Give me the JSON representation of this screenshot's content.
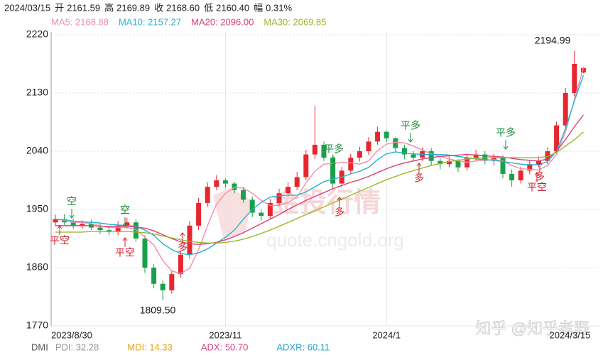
{
  "header": {
    "date": "2024/03/15",
    "items": [
      {
        "name": "开",
        "value": "2161.59"
      },
      {
        "name": "高",
        "value": "2169.89"
      },
      {
        "name": "收",
        "value": "2168.60"
      },
      {
        "name": "低",
        "value": "2160.40"
      },
      {
        "name": "幅",
        "value": "0.31%"
      }
    ]
  },
  "chart_data": {
    "type": "candlestick",
    "categories": [
      "2023/8/30",
      null,
      null,
      null,
      null,
      null,
      null,
      null,
      null,
      null,
      null,
      null,
      null,
      null,
      null,
      null,
      null,
      null,
      null,
      "2023/11",
      null,
      null,
      null,
      null,
      null,
      null,
      null,
      null,
      null,
      null,
      null,
      null,
      null,
      null,
      null,
      null,
      null,
      "2024/1",
      null,
      null,
      null,
      null,
      null,
      null,
      null,
      null,
      null,
      null,
      null,
      null,
      null,
      null,
      null,
      null,
      null,
      null,
      null,
      null,
      null,
      "2024/3/15"
    ],
    "open": [
      1930,
      1935,
      1930,
      1925,
      1928,
      1922,
      1918,
      1915,
      1925,
      1930,
      1905,
      1860,
      1835,
      1825,
      1850,
      1880,
      1925,
      1960,
      1985,
      1995,
      1990,
      1980,
      1965,
      1945,
      1940,
      1960,
      1975,
      1985,
      2000,
      2035,
      2050,
      2030,
      1990,
      2010,
      2030,
      2040,
      2055,
      2070,
      2060,
      2045,
      2035,
      2030,
      2040,
      2025,
      2020,
      2025,
      2015,
      2030,
      2035,
      2025,
      2030,
      2005,
      1995,
      2010,
      2020,
      2025,
      2040,
      2080,
      2130,
      2161.59
    ],
    "high": [
      1942,
      1943,
      1936,
      1933,
      1934,
      1928,
      1924,
      1932,
      1937,
      1935,
      1910,
      1866,
      1840,
      1856,
      1886,
      1932,
      1968,
      1992,
      2003,
      1998,
      1993,
      1985,
      1970,
      1950,
      1966,
      1982,
      1992,
      2008,
      2042,
      2110,
      2055,
      2035,
      2016,
      2036,
      2047,
      2062,
      2078,
      2072,
      2062,
      2050,
      2040,
      2046,
      2045,
      2030,
      2032,
      2028,
      2036,
      2042,
      2040,
      2036,
      2034,
      2012,
      2016,
      2026,
      2032,
      2046,
      2086,
      2138,
      2194.99,
      2169.89
    ],
    "low": [
      1924,
      1926,
      1920,
      1920,
      1918,
      1912,
      1910,
      1910,
      1920,
      1900,
      1852,
      1828,
      1809.5,
      1820,
      1845,
      1874,
      1918,
      1954,
      1980,
      1984,
      1975,
      1960,
      1938,
      1932,
      1935,
      1955,
      1970,
      1980,
      1995,
      2028,
      2025,
      1982,
      1985,
      2004,
      2024,
      2034,
      2050,
      2054,
      2040,
      2028,
      2024,
      2025,
      2018,
      2012,
      2015,
      2008,
      2010,
      2025,
      2020,
      2018,
      1998,
      1985,
      1990,
      2004,
      2015,
      2020,
      2035,
      2075,
      2125,
      2160.4
    ],
    "close": [
      1935,
      1930,
      1925,
      1928,
      1922,
      1918,
      1915,
      1925,
      1930,
      1905,
      1860,
      1835,
      1825,
      1850,
      1880,
      1925,
      1960,
      1985,
      1995,
      1990,
      1980,
      1965,
      1945,
      1940,
      1960,
      1975,
      1985,
      2000,
      2035,
      2050,
      2030,
      1990,
      2010,
      2030,
      2040,
      2055,
      2070,
      2060,
      2045,
      2035,
      2030,
      2040,
      2025,
      2020,
      2025,
      2015,
      2030,
      2035,
      2025,
      2030,
      2005,
      1995,
      2010,
      2020,
      2025,
      2040,
      2080,
      2130,
      2175,
      2168.6
    ],
    "up_color": "#e8262f",
    "down_color": "#1aa04a",
    "series": [
      {
        "name": "MA5: 2168.88",
        "color": "#f08fa8",
        "values": [
          1935,
          1933,
          1930,
          1930,
          1928,
          1925,
          1922,
          1922,
          1922,
          1919,
          1907,
          1895,
          1871,
          1855,
          1851,
          1859,
          1888,
          1925,
          1958,
          1975,
          1984,
          1983,
          1975,
          1964,
          1956,
          1956,
          1961,
          1969,
          1991,
          2009,
          2020,
          2021,
          2023,
          2022,
          2020,
          2025,
          2041,
          2051,
          2054,
          2053,
          2048,
          2042,
          2036,
          2032,
          2028,
          2025,
          2023,
          2025,
          2026,
          2027,
          2025,
          2018,
          2013,
          2012,
          2011,
          2018,
          2035,
          2070,
          2120,
          2168.88
        ]
      },
      {
        "name": "MA10: 2157.27",
        "color": "#25b0d2",
        "values": [
          1935,
          1934,
          1932,
          1931,
          1930,
          1929,
          1927,
          1926,
          1925,
          1924,
          1918,
          1910,
          1897,
          1888,
          1882,
          1880,
          1883,
          1889,
          1898,
          1907,
          1918,
          1935,
          1950,
          1961,
          1969,
          1971,
          1972,
          1972,
          1977,
          1985,
          1993,
          1997,
          2000,
          2005,
          2009,
          2015,
          2027,
          2036,
          2039,
          2037,
          2036,
          2035,
          2035,
          2035,
          2034,
          2032,
          2030,
          2028,
          2027,
          2026,
          2024,
          2022,
          2020,
          2019,
          2019,
          2024,
          2040,
          2075,
          2118,
          2157.27
        ]
      },
      {
        "name": "MA20: 2096.00",
        "color": "#d9407a",
        "values": [
          1925,
          1925,
          1925,
          1925,
          1925,
          1924,
          1924,
          1924,
          1924,
          1923,
          1921,
          1917,
          1911,
          1905,
          1900,
          1897,
          1896,
          1897,
          1899,
          1903,
          1908,
          1914,
          1921,
          1928,
          1935,
          1942,
          1950,
          1957,
          1964,
          1970,
          1976,
          1982,
          1987,
          1992,
          1996,
          2001,
          2007,
          2013,
          2018,
          2022,
          2025,
          2028,
          2030,
          2032,
          2033,
          2034,
          2035,
          2034,
          2033,
          2032,
          2031,
          2029,
          2027,
          2026,
          2025,
          2028,
          2040,
          2058,
          2078,
          2096
        ]
      },
      {
        "name": "MA30: 2069.85",
        "color": "#9ab82a",
        "values": [
          1915,
          1915,
          1915,
          1915,
          1916,
          1916,
          1916,
          1916,
          1916,
          1915,
          1914,
          1912,
          1909,
          1906,
          1903,
          1901,
          1899,
          1898,
          1898,
          1899,
          1901,
          1904,
          1908,
          1913,
          1918,
          1924,
          1930,
          1936,
          1942,
          1948,
          1954,
          1960,
          1966,
          1972,
          1978,
          1984,
          1990,
          1996,
          2001,
          2006,
          2010,
          2014,
          2018,
          2021,
          2024,
          2026,
          2028,
          2029,
          2030,
          2030,
          2030,
          2030,
          2030,
          2030,
          2030,
          2032,
          2038,
          2048,
          2058,
          2069.85
        ]
      }
    ],
    "ylim": [
      1770,
      2220
    ],
    "yticks": [
      1770,
      1860,
      1950,
      2040,
      2130,
      2220
    ],
    "grid": true,
    "extremes": [
      2194.99,
      {
        "value": 1809.5,
        "label": "1809.50"
      }
    ],
    "signals": [
      "空",
      "平空",
      "空",
      "平空",
      "多",
      "平多",
      "多",
      "平多",
      "多",
      "平多",
      "多",
      "平空"
    ]
  },
  "indicators": {
    "name": "DMI",
    "items": [
      {
        "text": "PDI: 32.28",
        "color": "#999999"
      },
      {
        "text": "MDI: 14.33",
        "color": "#e8a317"
      },
      {
        "text": "ADX: 50.70",
        "color": "#d9408a"
      },
      {
        "text": "ADXR: 60.11",
        "color": "#25a8c8"
      }
    ]
  },
  "watermark": {
    "brand": "金投行情",
    "site": "quote.cngold.org",
    "credit": "知乎 @知乎者野"
  }
}
